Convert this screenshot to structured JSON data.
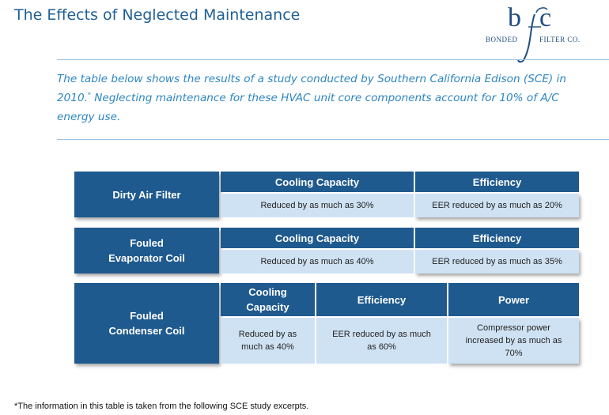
{
  "page": {
    "title": "The Effects of Neglected Maintenance",
    "intro_part1": "The table below shows the results of a study conducted by Southern California Edison (SCE) in 2010.",
    "intro_footnote_mark": "*",
    "intro_part2": " Neglecting maintenance for these HVAC unit core components account for 10% of A/C energy use.",
    "footnote": "*The information in this table is taken from the following SCE study excerpts."
  },
  "logo": {
    "letter_b": "b",
    "letter_f": "f",
    "letter_c": "c",
    "word_left": "BONDED",
    "word_right": "FILTER CO."
  },
  "table": {
    "dirty_air_filter": {
      "label": "Dirty Air Filter",
      "cooling_header": "Cooling Capacity",
      "efficiency_header": "Efficiency",
      "cooling_value": "Reduced by as much as 30%",
      "efficiency_value": "EER reduced by as much as 20%"
    },
    "fouled_evaporator": {
      "label_line1": "Fouled",
      "label_line2": "Evaporator Coil",
      "cooling_header": "Cooling Capacity",
      "efficiency_header": "Efficiency",
      "cooling_value": "Reduced by as much as 40%",
      "efficiency_value": "EER reduced by as much as 35%"
    },
    "fouled_condenser": {
      "label_line1": "Fouled",
      "label_line2": "Condenser Coil",
      "cooling_header_line1": "Cooling",
      "cooling_header_line2": "Capacity",
      "efficiency_header": "Efficiency",
      "power_header": "Power",
      "cooling_value_line1": "Reduced by as",
      "cooling_value_line2": "much as 40%",
      "efficiency_value_line1": "EER reduced by as much",
      "efficiency_value_line2": "as 60%",
      "power_value_line1": "Compressor power",
      "power_value_line2": "increased by as much as",
      "power_value_line3": "70%"
    }
  },
  "colors": {
    "header_blue": "#1f5a8e",
    "cell_light_blue": "#cfe2f3",
    "intro_text": "#2e86c1",
    "title_text": "#1f5f94"
  }
}
